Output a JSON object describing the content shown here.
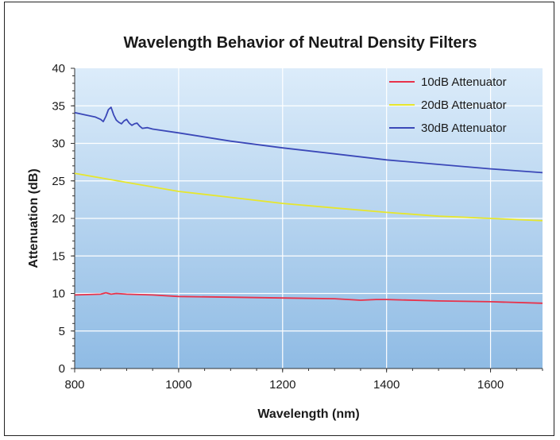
{
  "chart_data": {
    "type": "line",
    "title": "Wavelength Behavior of Neutral Density Filters",
    "xlabel": "Wavelength (nm)",
    "ylabel": "Attenuation (dB)",
    "xlim": [
      800,
      1700
    ],
    "ylim": [
      0,
      40
    ],
    "x_ticks": [
      800,
      1000,
      1200,
      1400,
      1600
    ],
    "y_ticks": [
      0,
      5,
      10,
      15,
      20,
      25,
      30,
      35,
      40
    ],
    "grid": true,
    "legend_position": "top-right",
    "background": "blue-gradient",
    "series": [
      {
        "name": "10dB Attenuator",
        "color": "#e8324a",
        "points": [
          [
            800,
            9.8
          ],
          [
            850,
            9.9
          ],
          [
            860,
            10.1
          ],
          [
            870,
            9.9
          ],
          [
            880,
            10.0
          ],
          [
            900,
            9.9
          ],
          [
            950,
            9.8
          ],
          [
            1000,
            9.6
          ],
          [
            1100,
            9.5
          ],
          [
            1200,
            9.4
          ],
          [
            1300,
            9.3
          ],
          [
            1350,
            9.1
          ],
          [
            1380,
            9.2
          ],
          [
            1400,
            9.2
          ],
          [
            1500,
            9.0
          ],
          [
            1600,
            8.9
          ],
          [
            1700,
            8.7
          ]
        ]
      },
      {
        "name": "20dB Attenuator",
        "color": "#e6e62e",
        "points": [
          [
            800,
            26.0
          ],
          [
            900,
            24.8
          ],
          [
            1000,
            23.6
          ],
          [
            1100,
            22.8
          ],
          [
            1200,
            22.0
          ],
          [
            1300,
            21.4
          ],
          [
            1400,
            20.8
          ],
          [
            1500,
            20.3
          ],
          [
            1600,
            20.0
          ],
          [
            1700,
            19.7
          ]
        ]
      },
      {
        "name": "30dB Attenuator",
        "color": "#3b48b8",
        "points": [
          [
            800,
            34.1
          ],
          [
            820,
            33.8
          ],
          [
            840,
            33.5
          ],
          [
            850,
            33.2
          ],
          [
            855,
            32.9
          ],
          [
            860,
            33.6
          ],
          [
            865,
            34.5
          ],
          [
            870,
            34.8
          ],
          [
            875,
            33.8
          ],
          [
            880,
            33.1
          ],
          [
            885,
            32.8
          ],
          [
            890,
            32.6
          ],
          [
            895,
            33.0
          ],
          [
            900,
            33.2
          ],
          [
            905,
            32.7
          ],
          [
            910,
            32.4
          ],
          [
            915,
            32.6
          ],
          [
            920,
            32.7
          ],
          [
            925,
            32.3
          ],
          [
            930,
            32.0
          ],
          [
            940,
            32.1
          ],
          [
            950,
            31.9
          ],
          [
            1000,
            31.4
          ],
          [
            1100,
            30.3
          ],
          [
            1200,
            29.4
          ],
          [
            1300,
            28.6
          ],
          [
            1400,
            27.8
          ],
          [
            1500,
            27.2
          ],
          [
            1600,
            26.6
          ],
          [
            1700,
            26.1
          ]
        ]
      }
    ]
  }
}
